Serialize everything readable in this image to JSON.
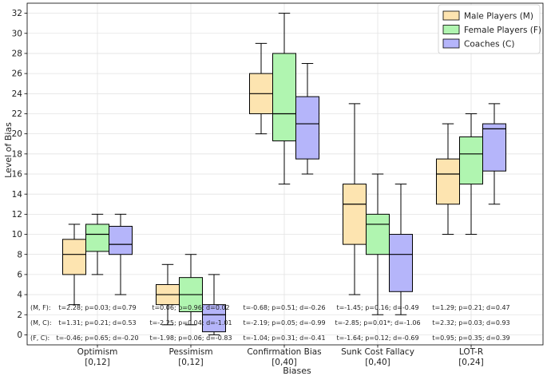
{
  "chart_data": {
    "type": "box",
    "title": "",
    "xlabel": "Biases",
    "ylabel": "Level of Bias",
    "ylim": [
      -1,
      33
    ],
    "yticks": [
      0,
      2,
      4,
      6,
      8,
      10,
      12,
      14,
      16,
      18,
      20,
      22,
      24,
      26,
      28,
      30,
      32
    ],
    "grid": true,
    "legend_position": "top-right",
    "categories": [
      {
        "name": "Optimism",
        "range": "[0,12]"
      },
      {
        "name": "Pessimism",
        "range": "[0,12]"
      },
      {
        "name": "Confirmation Bias",
        "range": "[0,40]"
      },
      {
        "name": "Sunk Cost Fallacy",
        "range": "[0,40]"
      },
      {
        "name": "LOT-R",
        "range": "[0,24]"
      }
    ],
    "series": [
      {
        "name": "Male Players (M)",
        "color": "#fde4b0",
        "boxes": [
          {
            "whislo": 3,
            "q1": 6,
            "med": 8,
            "q3": 9.5,
            "whishi": 11
          },
          {
            "whislo": 1,
            "q1": 3,
            "med": 4,
            "q3": 5,
            "whishi": 7
          },
          {
            "whislo": 20,
            "q1": 22,
            "med": 24,
            "q3": 26,
            "whishi": 29
          },
          {
            "whislo": 4,
            "q1": 9,
            "med": 13,
            "q3": 15,
            "whishi": 23
          },
          {
            "whislo": 10,
            "q1": 13,
            "med": 16,
            "q3": 17.5,
            "whishi": 21
          }
        ]
      },
      {
        "name": "Female Players (F)",
        "color": "#b0f5b0",
        "boxes": [
          {
            "whislo": 6,
            "q1": 8.3,
            "med": 10,
            "q3": 11,
            "whishi": 12
          },
          {
            "whislo": 1,
            "q1": 2.3,
            "med": 4,
            "q3": 5.7,
            "whishi": 8
          },
          {
            "whislo": 15,
            "q1": 19.3,
            "med": 22,
            "q3": 28,
            "whishi": 32
          },
          {
            "whislo": 2,
            "q1": 8,
            "med": 11,
            "q3": 12,
            "whishi": 16
          },
          {
            "whislo": 10,
            "q1": 15,
            "med": 18,
            "q3": 19.7,
            "whishi": 22
          }
        ]
      },
      {
        "name": "Coaches (C)",
        "color": "#b5b5fa",
        "boxes": [
          {
            "whislo": 4,
            "q1": 8,
            "med": 9,
            "q3": 10.8,
            "whishi": 12
          },
          {
            "whislo": 0,
            "q1": 0.3,
            "med": 2,
            "q3": 3,
            "whishi": 6
          },
          {
            "whislo": 16,
            "q1": 17.5,
            "med": 21,
            "q3": 23.7,
            "whishi": 27
          },
          {
            "whislo": 2,
            "q1": 4.3,
            "med": 8,
            "q3": 10,
            "whishi": 15
          },
          {
            "whislo": 13,
            "q1": 16.3,
            "med": 20.5,
            "q3": 21,
            "whishi": 23
          }
        ]
      }
    ],
    "comparisons": [
      {
        "pair": "(M, F):",
        "values": [
          "t=2.28; p=0.03; d=0.79",
          "t=0.06; p=0.96; d=0.02",
          "t=-0.68; p=0.51; d=-0.26",
          "t=-1.45; p=0.16; d=-0.49",
          "t=1.29; p=0.21; d=0.47"
        ]
      },
      {
        "pair": "(M, C):",
        "values": [
          "t=1.31; p=0.21; d=0.53",
          "t=-2.25; p=0.04; d=-1.01",
          "t=-2.19; p=0.05; d=-0.99",
          "t=-2.85; p=0.01*; d=-1.06",
          "t=2.32; p=0.03; d=0.93"
        ]
      },
      {
        "pair": "(F, C):",
        "values": [
          "t=-0.46; p=0.65; d=-0.20",
          "t=-1.98; p=0.06; d=-0.83",
          "t=-1.04; p=0.31; d=-0.41",
          "t=-1.64; p=0.12; d=-0.69",
          "t=0.95; p=0.35; d=0.39"
        ]
      }
    ]
  }
}
